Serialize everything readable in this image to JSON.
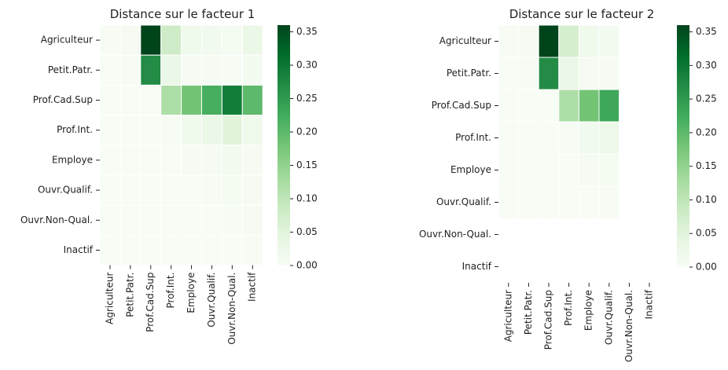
{
  "chart_data": [
    {
      "type": "heatmap",
      "title": "Distance sur le facteur 1",
      "rows": [
        "Agriculteur",
        "Petit.Patr.",
        "Prof.Cad.Sup",
        "Prof.Int.",
        "Employe",
        "Ouvr.Qualif.",
        "Ouvr.Non-Qual.",
        "Inactif"
      ],
      "columns": [
        "Agriculteur",
        "Petit.Patr.",
        "Prof.Cad.Sup",
        "Prof.Int.",
        "Employe",
        "Ouvr.Qualif.",
        "Ouvr.Non-Qual.",
        "Inactif"
      ],
      "values": [
        [
          0.002,
          0.004,
          0.36,
          0.08,
          0.02,
          0.015,
          0.008,
          0.03
        ],
        [
          0.0,
          0.003,
          0.27,
          0.03,
          0.005,
          0.004,
          0.002,
          0.01
        ],
        [
          0.0,
          0.0,
          0.0,
          0.12,
          0.18,
          0.22,
          0.29,
          0.2
        ],
        [
          0.0,
          0.0,
          0.0,
          0.003,
          0.02,
          0.03,
          0.05,
          0.02
        ],
        [
          0.0,
          0.0,
          0.0,
          0.0,
          0.004,
          0.006,
          0.012,
          0.005
        ],
        [
          0.0,
          0.0,
          0.0,
          0.0,
          0.0,
          0.002,
          0.008,
          0.004
        ],
        [
          0.0,
          0.0,
          0.0,
          0.0,
          0.0,
          0.0,
          0.003,
          0.006
        ],
        [
          0.0,
          0.0,
          0.0,
          0.0,
          0.0,
          0.0,
          0.0,
          0.002
        ]
      ],
      "colorbar": {
        "min": 0.0,
        "max": 0.36,
        "ticks": [
          "0.00",
          "0.05",
          "0.10",
          "0.15",
          "0.20",
          "0.25",
          "0.30",
          "0.35"
        ]
      }
    },
    {
      "type": "heatmap",
      "title": "Distance sur le facteur 2",
      "rows": [
        "Agriculteur",
        "Petit.Patr.",
        "Prof.Cad.Sup",
        "Prof.Int.",
        "Employe",
        "Ouvr.Qualif.",
        "Ouvr.Non-Qual.",
        "Inactif"
      ],
      "columns": [
        "Agriculteur",
        "Petit.Patr.",
        "Prof.Cad.Sup",
        "Prof.Int.",
        "Employe",
        "Ouvr.Qualif.",
        "Ouvr.Non-Qual.",
        "Inactif"
      ],
      "values": [
        [
          0.002,
          0.004,
          0.36,
          0.07,
          0.02,
          0.01,
          null,
          null
        ],
        [
          0.0,
          0.003,
          0.27,
          0.03,
          0.006,
          0.004,
          null,
          null
        ],
        [
          0.0,
          0.0,
          0.0,
          0.12,
          0.18,
          0.23,
          null,
          null
        ],
        [
          0.0,
          0.0,
          0.0,
          0.003,
          0.015,
          0.025,
          null,
          null
        ],
        [
          0.0,
          0.0,
          0.0,
          0.0,
          0.004,
          0.008,
          null,
          null
        ],
        [
          0.0,
          0.0,
          0.0,
          0.0,
          0.0,
          0.003,
          null,
          null
        ],
        [
          null,
          null,
          null,
          null,
          null,
          null,
          null,
          null
        ],
        [
          null,
          null,
          null,
          null,
          null,
          null,
          null,
          null
        ]
      ],
      "colorbar": {
        "min": 0.0,
        "max": 0.36,
        "ticks": [
          "0.00",
          "0.05",
          "0.10",
          "0.15",
          "0.20",
          "0.25",
          "0.30",
          "0.35"
        ]
      }
    }
  ]
}
